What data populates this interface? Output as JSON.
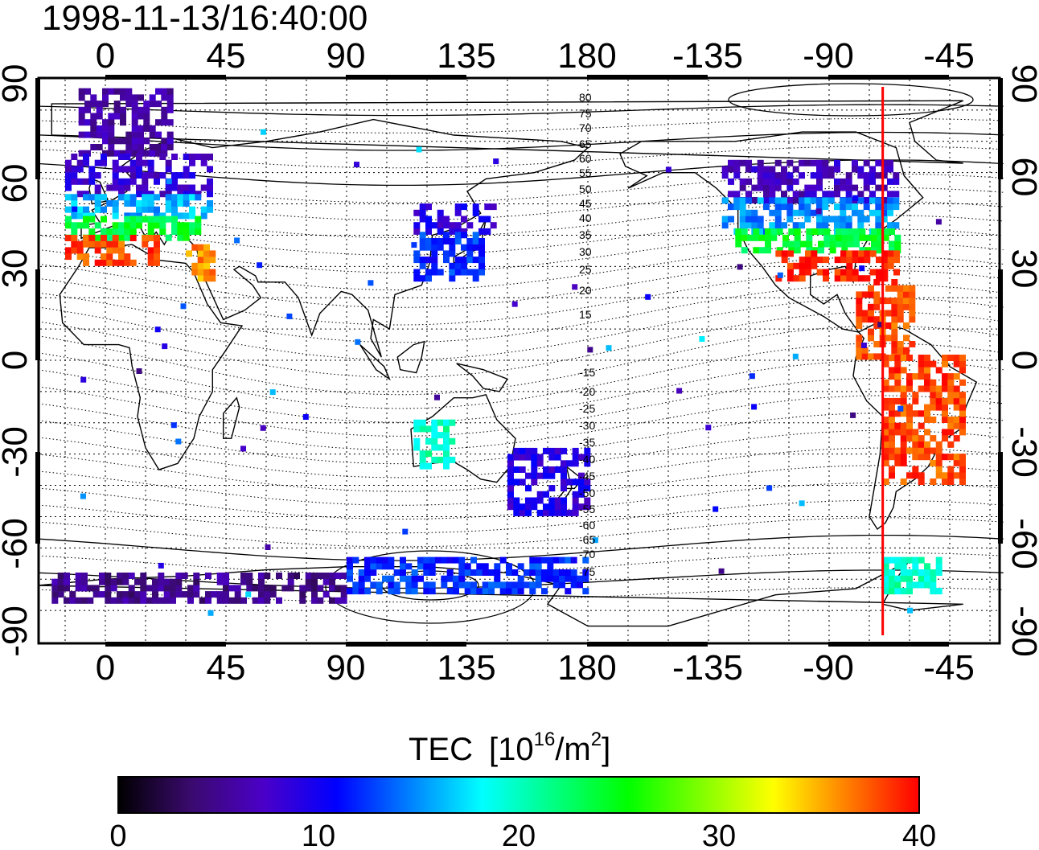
{
  "timestamp": "1998-11-13/16:40:00",
  "map": {
    "lon_ticks_top": [
      "0",
      "45",
      "90",
      "135",
      "180",
      "-135",
      "-90",
      "-45"
    ],
    "lon_ticks_bottom": [
      "0",
      "45",
      "90",
      "135",
      "180",
      "-135",
      "-90",
      "-45"
    ],
    "lat_ticks_left": [
      "90",
      "60",
      "30",
      "0",
      "-30",
      "-60",
      "-90"
    ],
    "lat_ticks_right": [
      "90",
      "60",
      "30",
      "0",
      "-30",
      "-60",
      "-90"
    ],
    "magnetic_lat_labels_north": [
      "80",
      "75",
      "70",
      "65",
      "60",
      "55",
      "50",
      "45",
      "40",
      "35",
      "30",
      "25",
      "20",
      "15"
    ],
    "magnetic_lat_labels_south": [
      "-15",
      "-20",
      "-25",
      "-30",
      "-35",
      "-40",
      "-45",
      "-50",
      "-55",
      "-60",
      "-65",
      "-70",
      "-75"
    ],
    "meridian_marker_lon": -70,
    "meridian_marker_color": "#ff0000"
  },
  "colorbar": {
    "label": "TEC",
    "unit_base": "[10",
    "unit_exp": "16",
    "unit_mid": "/m",
    "unit_exp2": "2",
    "unit_close": "]",
    "ticks": [
      "0",
      "10",
      "20",
      "30",
      "40"
    ],
    "min": 0,
    "max": 40,
    "colormap": [
      "#000000",
      "#3a0a6e",
      "#4b00c8",
      "#0000ff",
      "#0080ff",
      "#00ffff",
      "#00ff80",
      "#00ff00",
      "#80ff00",
      "#ffff00",
      "#ff8000",
      "#ff0000"
    ]
  },
  "chart_data": {
    "type": "heatmap",
    "title": "1998-11-13/16:40:00",
    "xlabel": "",
    "ylabel": "",
    "xlim": [
      -25,
      335
    ],
    "ylim": [
      -90,
      90
    ],
    "colorbar_label": "TEC [10^16/m^2]",
    "colorbar_range": [
      0,
      40
    ],
    "regions": [
      {
        "lon": [
          -10,
          25
        ],
        "lat": [
          65,
          85
        ],
        "tec": 6
      },
      {
        "lon": [
          -15,
          40
        ],
        "lat": [
          52,
          65
        ],
        "tec": 8
      },
      {
        "lon": [
          -15,
          40
        ],
        "lat": [
          45,
          52
        ],
        "tec": 16
      },
      {
        "lon": [
          -15,
          35
        ],
        "lat": [
          38,
          45
        ],
        "tec": 24
      },
      {
        "lon": [
          -15,
          20
        ],
        "lat": [
          30,
          38
        ],
        "tec": 38
      },
      {
        "lon": [
          30,
          40
        ],
        "lat": [
          25,
          35
        ],
        "tec": 36
      },
      {
        "lon": [
          115,
          145
        ],
        "lat": [
          40,
          48
        ],
        "tec": 9
      },
      {
        "lon": [
          115,
          140
        ],
        "lat": [
          25,
          40
        ],
        "tec": 12
      },
      {
        "lon": [
          -130,
          -65
        ],
        "lat": [
          50,
          62
        ],
        "tec": 7
      },
      {
        "lon": [
          -130,
          -65
        ],
        "lat": [
          40,
          50
        ],
        "tec": 15
      },
      {
        "lon": [
          -125,
          -65
        ],
        "lat": [
          34,
          40
        ],
        "tec": 24
      },
      {
        "lon": [
          -110,
          -65
        ],
        "lat": [
          25,
          34
        ],
        "tec": 39
      },
      {
        "lon": [
          -80,
          -60
        ],
        "lat": [
          0,
          25
        ],
        "tec": 38
      },
      {
        "lon": [
          -70,
          -40
        ],
        "lat": [
          -40,
          0
        ],
        "tec": 38
      },
      {
        "lon": [
          115,
          130
        ],
        "lat": [
          -35,
          -20
        ],
        "tec": 20
      },
      {
        "lon": [
          150,
          180
        ],
        "lat": [
          -50,
          -30
        ],
        "tec": 9
      },
      {
        "lon": [
          -20,
          90
        ],
        "lat": [
          -78,
          -70
        ],
        "tec": 5
      },
      {
        "lon": [
          90,
          180
        ],
        "lat": [
          -75,
          -65
        ],
        "tec": 12
      },
      {
        "lon": [
          -70,
          -50
        ],
        "lat": [
          -75,
          -65
        ],
        "tec": 20
      }
    ]
  }
}
